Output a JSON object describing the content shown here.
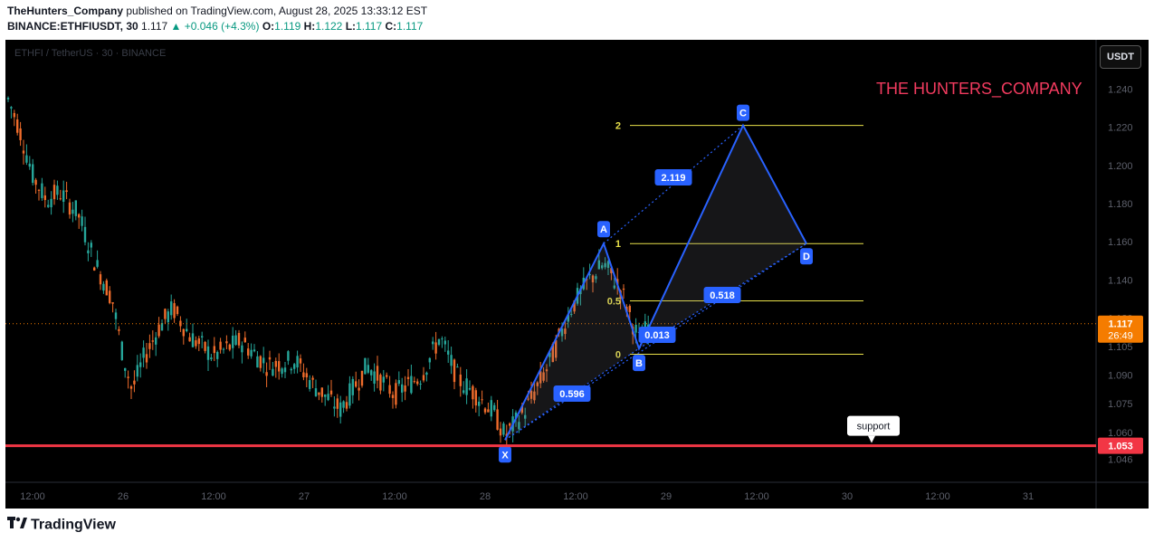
{
  "header": {
    "publisher": "TheHunters_Company",
    "published_text": "published on TradingView.com, August 28, 2025 13:33:12 EST",
    "symbol": "BINANCE:ETHFIUSDT, 30",
    "last": "1.117",
    "change": "+0.046 (+4.3%)",
    "o_label": "O:",
    "o_value": "1.119",
    "h_label": "H:",
    "h_value": "1.122",
    "l_label": "L:",
    "l_value": "1.117",
    "c_label": "C:",
    "c_value": "1.117"
  },
  "chart_title": "ETHFI / TetherUS · 30 · BINANCE",
  "currency_button": "USDT",
  "watermark": "THE HUNTERS_COMPANY",
  "footer": {
    "brand": "TradingView"
  },
  "colors": {
    "up": "#26a69a",
    "down": "#ef6c2b",
    "pattern": "#2962ff",
    "fib": "#e8e04a",
    "support": "#f23645",
    "watermark": "#f23b5f",
    "price_tag": "#f57c00"
  },
  "chart_data": {
    "type": "candlestick",
    "y_range": [
      1.04,
      1.245
    ],
    "y_ticks": [
      "1.240",
      "1.220",
      "1.200",
      "1.180",
      "1.160",
      "1.140",
      "1.120",
      "1.105",
      "1.090",
      "1.075",
      "1.060",
      "1.046"
    ],
    "x_ticks": [
      "12:00",
      "26",
      "12:00",
      "27",
      "12:00",
      "28",
      "12:00",
      "29",
      "12:00",
      "30",
      "12:00",
      "31"
    ],
    "current_price": "1.117",
    "countdown": "26:49",
    "support_level": "1.053",
    "support_label": "support",
    "harmonic_pattern": {
      "points": [
        {
          "label": "X",
          "price": 1.056
        },
        {
          "label": "A",
          "price": 1.159
        },
        {
          "label": "B",
          "price": 1.104
        },
        {
          "label": "C",
          "price": 1.221
        },
        {
          "label": "D",
          "price": 1.159
        }
      ],
      "ratios": [
        "0.596",
        "2.119",
        "0.518",
        "0.013"
      ]
    },
    "fib_levels": [
      {
        "label": "2",
        "price": 1.221
      },
      {
        "label": "1",
        "price": 1.159
      },
      {
        "label": "0.5",
        "price": 1.129
      },
      {
        "label": "0",
        "price": 1.101
      }
    ]
  }
}
